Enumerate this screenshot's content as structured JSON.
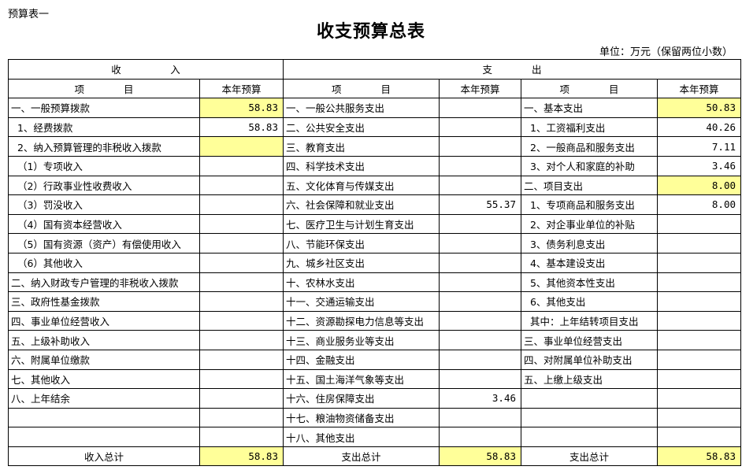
{
  "sheet_label": "预算表一",
  "title": "收支预算总表",
  "unit": "单位：万元（保留两位小数）",
  "highlight_color": "#ffff99",
  "header": {
    "income": "收　　　　　入",
    "expense": "支　　　　出",
    "item": "项　　　　目",
    "budget": "本年预算"
  },
  "rows": [
    {
      "inc": "一、一般预算拨款",
      "inc_val": "58.83",
      "inc_hl": true,
      "exp": "一、一般公共服务支出",
      "exp_val": "",
      "exp2": "一、基本支出",
      "exp2_val": "50.83",
      "exp2_hl": true
    },
    {
      "inc": "  1、经费拨款",
      "inc_val": "58.83",
      "exp": "二、公共安全支出",
      "exp_val": "",
      "exp2": "  1、工资福利支出",
      "exp2_val": "40.26"
    },
    {
      "inc": "  2、纳入预算管理的非税收入拨款",
      "inc_val": "",
      "inc_hl": true,
      "exp": "三、教育支出",
      "exp_val": "",
      "exp2": "  2、一般商品和服务支出",
      "exp2_val": "7.11"
    },
    {
      "inc": "  （1）专项收入",
      "inc_val": "",
      "exp": "四、科学技术支出",
      "exp_val": "",
      "exp2": "  3、对个人和家庭的补助",
      "exp2_val": "3.46"
    },
    {
      "inc": "  （2）行政事业性收费收入",
      "inc_val": "",
      "exp": "五、文化体育与传媒支出",
      "exp_val": "",
      "exp2": "二、项目支出",
      "exp2_val": "8.00",
      "exp2_hl": true
    },
    {
      "inc": "  （3）罚没收入",
      "inc_val": "",
      "exp": "六、社会保障和就业支出",
      "exp_val": "55.37",
      "exp2": "  1、专项商品和服务支出",
      "exp2_val": "8.00"
    },
    {
      "inc": "  （4）国有资本经营收入",
      "inc_val": "",
      "exp": "七、医疗卫生与计划生育支出",
      "exp_val": "",
      "exp2": "  2、对企事业单位的补贴",
      "exp2_val": ""
    },
    {
      "inc": "  （5）国有资源（资产）有偿使用收入",
      "inc_val": "",
      "exp": "八、节能环保支出",
      "exp_val": "",
      "exp2": "  3、债务利息支出",
      "exp2_val": ""
    },
    {
      "inc": "  （6）其他收入",
      "inc_val": "",
      "exp": "九、城乡社区支出",
      "exp_val": "",
      "exp2": "  4、基本建设支出",
      "exp2_val": ""
    },
    {
      "inc": "二、纳入财政专户管理的非税收入拨款",
      "inc_val": "",
      "exp": "十、农林水支出",
      "exp_val": "",
      "exp2": "  5、其他资本性支出",
      "exp2_val": ""
    },
    {
      "inc": "三、政府性基金拨款",
      "inc_val": "",
      "exp": "十一、交通运输支出",
      "exp_val": "",
      "exp2": "  6、其他支出",
      "exp2_val": ""
    },
    {
      "inc": "四、事业单位经营收入",
      "inc_val": "",
      "exp": "十二、资源勘探电力信息等支出",
      "exp_val": "",
      "exp2": "  其中：上年结转项目支出",
      "exp2_val": ""
    },
    {
      "inc": "五、上级补助收入",
      "inc_val": "",
      "exp": "十三、商业服务业等支出",
      "exp_val": "",
      "exp2": "三、事业单位经营支出",
      "exp2_val": ""
    },
    {
      "inc": "六、附属单位缴款",
      "inc_val": "",
      "exp": "十四、金融支出",
      "exp_val": "",
      "exp2": "四、对附属单位补助支出",
      "exp2_val": ""
    },
    {
      "inc": "七、其他收入",
      "inc_val": "",
      "exp": "十五、国土海洋气象等支出",
      "exp_val": "",
      "exp2": "五、上缴上级支出",
      "exp2_val": ""
    },
    {
      "inc": "八、上年结余",
      "inc_val": "",
      "exp": "十六、住房保障支出",
      "exp_val": "3.46",
      "exp2": "",
      "exp2_val": ""
    },
    {
      "inc": "",
      "inc_val": "",
      "exp": "十七、粮油物资储备支出",
      "exp_val": "",
      "exp2": "",
      "exp2_val": ""
    },
    {
      "inc": "",
      "inc_val": "",
      "exp": "十八、其他支出",
      "exp_val": "",
      "exp2": "",
      "exp2_val": ""
    }
  ],
  "totals": {
    "income_label": "收入总计",
    "income_value": "58.83",
    "expense_label": "支出总计",
    "expense_value": "58.83",
    "expense2_label": "支出总计",
    "expense2_value": "58.83"
  }
}
